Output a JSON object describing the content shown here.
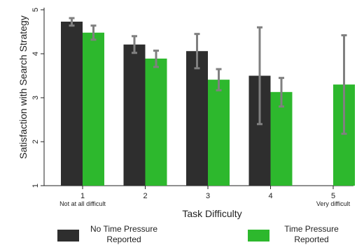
{
  "chart_data": {
    "type": "bar",
    "xlabel": "Task Difficulty",
    "ylabel": "Satisfaction with Search Strategy",
    "ylim": [
      1,
      5
    ],
    "yticks": [
      1,
      2,
      3,
      4,
      5
    ],
    "categories": [
      "1",
      "2",
      "3",
      "4",
      "5"
    ],
    "category_sublabels": [
      "Not at all difficult",
      "",
      "",
      "",
      "Very difficult"
    ],
    "series": [
      {
        "name": "No Time Pressure Reported",
        "color": "#2e2e2e",
        "values": [
          4.73,
          4.21,
          4.06,
          3.5,
          null
        ],
        "error_low": [
          4.64,
          4.02,
          3.67,
          2.4,
          null
        ],
        "error_high": [
          4.81,
          4.4,
          4.45,
          4.6,
          null
        ]
      },
      {
        "name": "Time Pressure Reported",
        "color": "#2db82d",
        "values": [
          4.48,
          3.89,
          3.41,
          3.13,
          3.3
        ],
        "error_low": [
          4.32,
          3.7,
          3.17,
          2.8,
          2.18
        ],
        "error_high": [
          4.64,
          4.07,
          3.65,
          3.45,
          4.42
        ]
      }
    ],
    "error_bar_color": "#808080",
    "legend": {
      "position": "bottom",
      "items": [
        {
          "line1": "No Time Pressure",
          "line2": "Reported"
        },
        {
          "line1": "Time Pressure",
          "line2": "Reported"
        }
      ]
    },
    "grid": false
  }
}
